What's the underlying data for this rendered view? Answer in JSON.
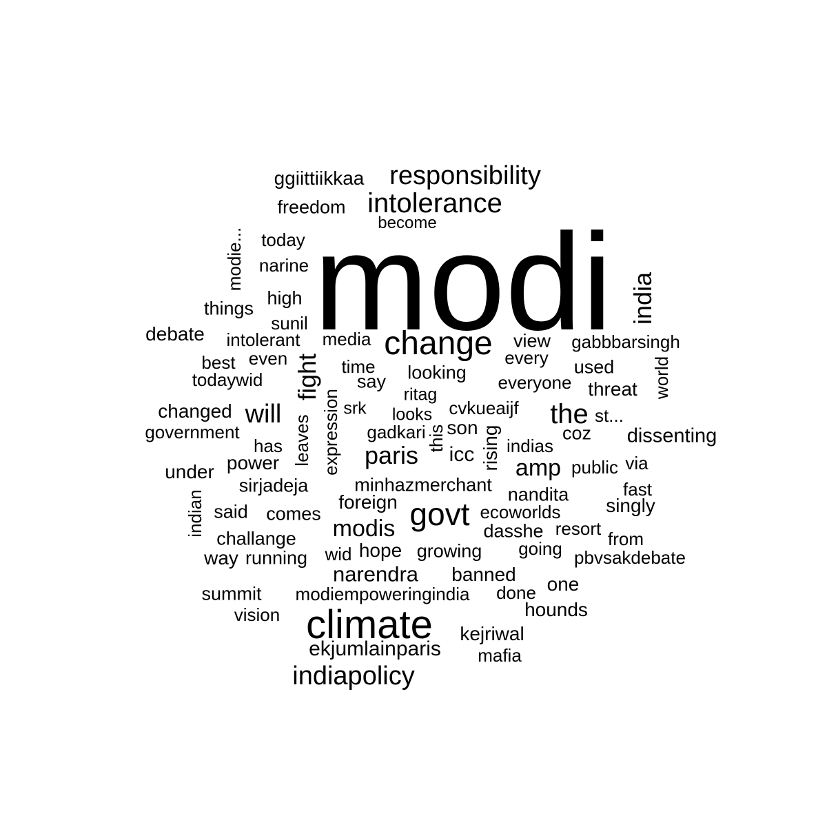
{
  "words": [
    {
      "text": "modi"
    },
    {
      "text": "climate"
    },
    {
      "text": "change"
    },
    {
      "text": "govt"
    },
    {
      "text": "responsibility"
    },
    {
      "text": "intolerance"
    },
    {
      "text": "indiapolicy"
    },
    {
      "text": "the"
    },
    {
      "text": "will"
    },
    {
      "text": "paris"
    },
    {
      "text": "india"
    },
    {
      "text": "fight"
    },
    {
      "text": "modis"
    },
    {
      "text": "narendra"
    },
    {
      "text": "amp"
    },
    {
      "text": "ekjumlainparis"
    },
    {
      "text": "ggiittiikkaa"
    },
    {
      "text": "freedom"
    },
    {
      "text": "become"
    },
    {
      "text": "today"
    },
    {
      "text": "narine"
    },
    {
      "text": "high"
    },
    {
      "text": "things"
    },
    {
      "text": "sunil"
    },
    {
      "text": "modie..."
    },
    {
      "text": "debate"
    },
    {
      "text": "intolerant"
    },
    {
      "text": "media"
    },
    {
      "text": "view"
    },
    {
      "text": "gabbbarsingh"
    },
    {
      "text": "best"
    },
    {
      "text": "even"
    },
    {
      "text": "time"
    },
    {
      "text": "every"
    },
    {
      "text": "used"
    },
    {
      "text": "todaywid"
    },
    {
      "text": "say"
    },
    {
      "text": "looking"
    },
    {
      "text": "everyone"
    },
    {
      "text": "threat"
    },
    {
      "text": "world"
    },
    {
      "text": "changed"
    },
    {
      "text": "ritag"
    },
    {
      "text": "srk"
    },
    {
      "text": "cvkueaijf"
    },
    {
      "text": "st..."
    },
    {
      "text": "government"
    },
    {
      "text": "looks"
    },
    {
      "text": "gadkari"
    },
    {
      "text": "son"
    },
    {
      "text": "coz"
    },
    {
      "text": "dissenting"
    },
    {
      "text": "has"
    },
    {
      "text": "leaves"
    },
    {
      "text": "expression"
    },
    {
      "text": "this"
    },
    {
      "text": "rising"
    },
    {
      "text": "indias"
    },
    {
      "text": "power"
    },
    {
      "text": "icc"
    },
    {
      "text": "public"
    },
    {
      "text": "via"
    },
    {
      "text": "under"
    },
    {
      "text": "sirjadeja"
    },
    {
      "text": "minhazmerchant"
    },
    {
      "text": "nandita"
    },
    {
      "text": "fast"
    },
    {
      "text": "indian"
    },
    {
      "text": "said"
    },
    {
      "text": "comes"
    },
    {
      "text": "foreign"
    },
    {
      "text": "ecoworlds"
    },
    {
      "text": "singly"
    },
    {
      "text": "challange"
    },
    {
      "text": "dasshe"
    },
    {
      "text": "resort"
    },
    {
      "text": "from"
    },
    {
      "text": "way"
    },
    {
      "text": "running"
    },
    {
      "text": "wid"
    },
    {
      "text": "hope"
    },
    {
      "text": "growing"
    },
    {
      "text": "going"
    },
    {
      "text": "pbvsakdebate"
    },
    {
      "text": "banned"
    },
    {
      "text": "one"
    },
    {
      "text": "summit"
    },
    {
      "text": "modiempoweringindia"
    },
    {
      "text": "done"
    },
    {
      "text": "vision"
    },
    {
      "text": "hounds"
    },
    {
      "text": "kejriwal"
    },
    {
      "text": "mafia"
    }
  ]
}
